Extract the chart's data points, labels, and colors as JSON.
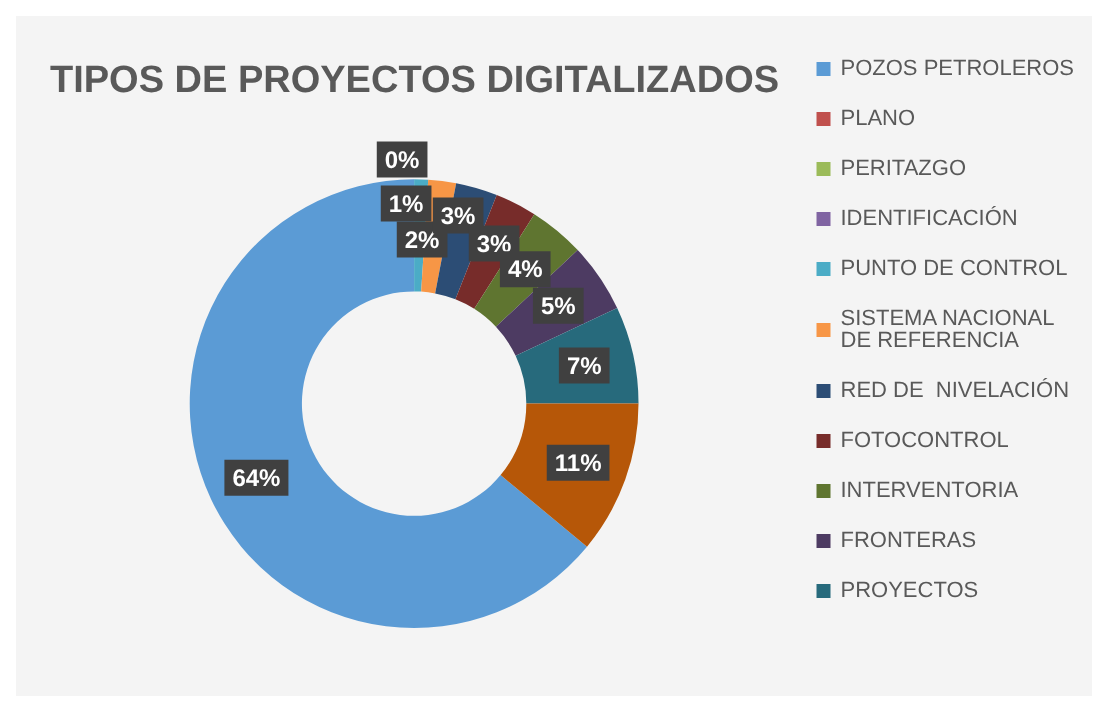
{
  "chart_data": {
    "type": "donut",
    "title": "TIPOS DE PROYECTOS DIGITALIZADOS",
    "categories": [
      "POZOS PETROLEROS",
      "PLANO",
      "PERITAZGO",
      "IDENTIFICACIÓN",
      "PUNTO DE CONTROL",
      "SISTEMA NACIONAL DE REFERENCIA",
      "RED DE  NIVELACIÓN",
      "FOTOCONTROL",
      "INTERVENTORIA",
      "FRONTERAS",
      "PROYECTOS",
      null
    ],
    "values": [
      64,
      0,
      0,
      0,
      1,
      2,
      3,
      3,
      4,
      5,
      7,
      11
    ],
    "value_labels": [
      "64%",
      null,
      null,
      "0%",
      "1%",
      "2%",
      "3%",
      "3%",
      "4%",
      "5%",
      "7%",
      "11%"
    ],
    "colors": [
      "#5b9bd5",
      "#c0504d",
      "#9bbb59",
      "#8064a2",
      "#4bacc6",
      "#f79646",
      "#2c4d75",
      "#772c2a",
      "#5f7530",
      "#4d3b62",
      "#276a7c",
      "#b65708"
    ],
    "legend": "right"
  }
}
